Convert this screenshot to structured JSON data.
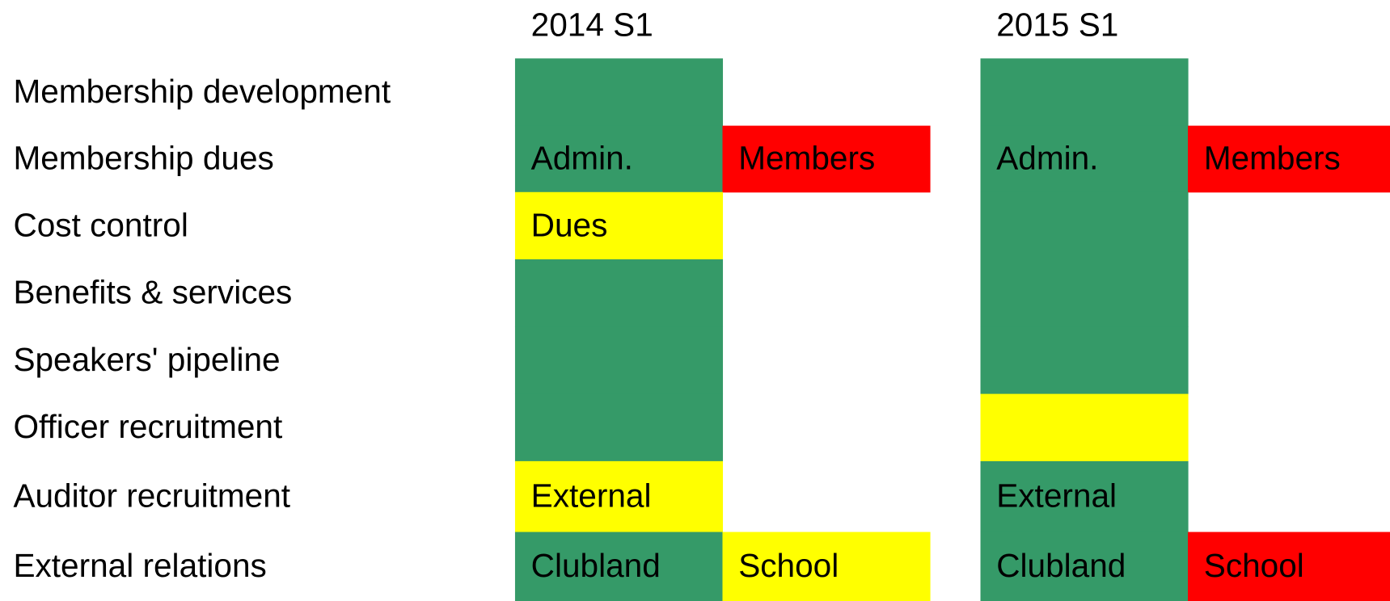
{
  "rows": [
    "Membership development",
    "Membership dues",
    "Cost control",
    "Benefits & services",
    "Speakers' pipeline",
    "Officer recruitment",
    "Auditor recruitment",
    "External relations"
  ],
  "periods": [
    {
      "header": "2014 S1",
      "cells": [
        [
          {
            "color": "#359a68"
          },
          null
        ],
        [
          {
            "color": "#359a68",
            "text": "Admin."
          },
          {
            "color": "#ff0000",
            "text": "Members"
          }
        ],
        [
          {
            "color": "#ffff00",
            "text": "Dues"
          },
          null
        ],
        [
          {
            "color": "#359a68"
          },
          null
        ],
        [
          {
            "color": "#359a68"
          },
          null
        ],
        [
          {
            "color": "#359a68"
          },
          null
        ],
        [
          {
            "color": "#ffff00",
            "text": "External"
          },
          null
        ],
        [
          {
            "color": "#359a68",
            "text": "Clubland"
          },
          {
            "color": "#ffff00",
            "text": "School"
          }
        ]
      ]
    },
    {
      "header": "2015 S1",
      "cells": [
        [
          {
            "color": "#359a68"
          },
          null
        ],
        [
          {
            "color": "#359a68",
            "text": "Admin."
          },
          {
            "color": "#ff0000",
            "text": "Members"
          }
        ],
        [
          {
            "color": "#359a68"
          },
          null
        ],
        [
          {
            "color": "#359a68"
          },
          null
        ],
        [
          {
            "color": "#359a68"
          },
          null
        ],
        [
          {
            "color": "#ffff00"
          },
          null
        ],
        [
          {
            "color": "#359a68",
            "text": "External"
          },
          null
        ],
        [
          {
            "color": "#359a68",
            "text": "Clubland"
          },
          {
            "color": "#ff0000",
            "text": "School"
          }
        ]
      ]
    }
  ]
}
